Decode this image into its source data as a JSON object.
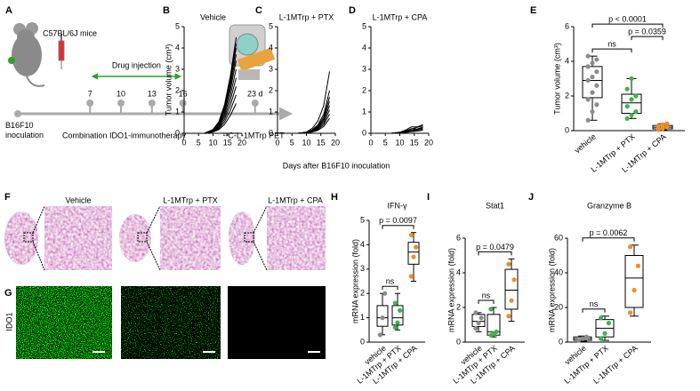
{
  "figure": {
    "panel_letters": [
      "A",
      "B",
      "C",
      "D",
      "E",
      "F",
      "G",
      "H",
      "I",
      "J"
    ],
    "schematic": {
      "mouse_label": "C57BL/6J mice",
      "injection_label": "Drug injection",
      "timeline": [
        7,
        10,
        13,
        16,
        {
          "value": 23,
          "label": "23 d"
        }
      ],
      "start_label": "B16F10 inoculation",
      "therapy_label": "Combination IDO1-immunotherapy",
      "pet_label": "¹¹C-L-1MTrp PET"
    },
    "shared_x_label": "Days after B16F10 inoculation",
    "histology": {
      "groups": [
        "Vehicle",
        "L-1MTrp + PTX",
        "L-1MTrp + CPA"
      ],
      "stain_label": "IDO1"
    }
  },
  "chart_data": [
    {
      "type": "line",
      "title": "Vehicle",
      "ylabel": "Tumor volume (cm³)",
      "color": "#000000",
      "x": [
        7,
        10,
        12,
        14,
        16,
        18
      ],
      "xlim": [
        0,
        20
      ],
      "xticks": [
        0,
        5,
        10,
        15,
        20
      ],
      "ylim": [
        0,
        5
      ],
      "yticks": [
        0,
        1,
        2,
        3,
        4,
        5
      ],
      "series": [
        {
          "values": [
            0,
            0.18,
            0.54,
            1.35,
            2.7,
            4.5
          ]
        },
        {
          "values": [
            0,
            0.17,
            0.5,
            1.26,
            2.52,
            4.2
          ]
        },
        {
          "values": [
            0,
            0.16,
            0.48,
            1.2,
            2.4,
            4.0
          ]
        },
        {
          "values": [
            0,
            0.15,
            0.44,
            1.11,
            2.22,
            3.7
          ]
        },
        {
          "values": [
            0,
            0.14,
            0.41,
            1.02,
            2.04,
            3.4
          ]
        },
        {
          "values": [
            0,
            0.12,
            0.36,
            0.9,
            1.8,
            3.0
          ]
        },
        {
          "values": [
            0,
            0.1,
            0.31,
            0.78,
            1.56,
            2.6
          ]
        },
        {
          "values": [
            0,
            0.09,
            0.26,
            0.66,
            1.32,
            2.2
          ]
        },
        {
          "values": [
            0,
            0.07,
            0.22,
            0.54,
            1.08,
            1.8
          ]
        },
        {
          "values": [
            0,
            0.06,
            0.17,
            0.42,
            0.84,
            1.4
          ]
        }
      ]
    },
    {
      "type": "line",
      "title": "L-1MTrp + PTX",
      "color": "#000000",
      "x": [
        7,
        10,
        12,
        14,
        16,
        18
      ],
      "xlim": [
        0,
        20
      ],
      "xticks": [
        0,
        5,
        10,
        15,
        20
      ],
      "ylim": [
        0,
        5
      ],
      "yticks": [
        0,
        1,
        2,
        3,
        4,
        5
      ],
      "series": [
        {
          "values": [
            0,
            0.06,
            0.23,
            0.58,
            1.31,
            2.9
          ]
        },
        {
          "values": [
            0,
            0.04,
            0.16,
            0.4,
            0.9,
            2.0
          ]
        },
        {
          "values": [
            0,
            0.03,
            0.14,
            0.34,
            0.77,
            1.7
          ]
        },
        {
          "values": [
            0,
            0.03,
            0.12,
            0.3,
            0.68,
            1.5
          ]
        },
        {
          "values": [
            0,
            0.03,
            0.1,
            0.26,
            0.59,
            1.3
          ]
        },
        {
          "values": [
            0,
            0.02,
            0.09,
            0.22,
            0.5,
            1.1
          ]
        },
        {
          "values": [
            0,
            0.02,
            0.07,
            0.18,
            0.41,
            0.9
          ]
        },
        {
          "values": [
            0,
            0.01,
            0.06,
            0.14,
            0.32,
            0.7
          ]
        }
      ]
    },
    {
      "type": "line",
      "title": "L-1MTrp + CPA",
      "color": "#000000",
      "x": [
        7,
        10,
        12,
        14,
        16,
        18
      ],
      "xlim": [
        0,
        20
      ],
      "xticks": [
        0,
        5,
        10,
        15,
        20
      ],
      "ylim": [
        0,
        5
      ],
      "yticks": [
        0,
        1,
        2,
        3,
        4,
        5
      ],
      "series": [
        {
          "values": [
            0,
            0.05,
            0.15,
            0.3,
            0.3,
            0.4
          ]
        },
        {
          "values": [
            0,
            0.04,
            0.12,
            0.2,
            0.28,
            0.35
          ]
        },
        {
          "values": [
            0,
            0.03,
            0.1,
            0.22,
            0.2,
            0.3
          ]
        },
        {
          "values": [
            0,
            0.03,
            0.08,
            0.15,
            0.18,
            0.25
          ]
        },
        {
          "values": [
            0,
            0.02,
            0.06,
            0.1,
            0.15,
            0.2
          ]
        },
        {
          "values": [
            0,
            0.01,
            0.04,
            0.08,
            0.1,
            0.15
          ]
        }
      ]
    },
    {
      "type": "box",
      "ylabel": "Tumor volume (cm³)",
      "categories": [
        "vehicle",
        "L-1MTrp + PTX",
        "L-1MTrp + CPA"
      ],
      "colors": [
        "#8c8c8c",
        "#3cb44b",
        "#f08c28"
      ],
      "ylim": [
        0,
        6
      ],
      "yticks": [
        0,
        2,
        4,
        6
      ],
      "boxes": [
        {
          "min": 0.6,
          "q1": 1.9,
          "median": 2.9,
          "q3": 3.7,
          "max": 4.3,
          "points": [
            0.6,
            1.1,
            1.5,
            1.8,
            2.2,
            2.6,
            2.9,
            3.1,
            3.4,
            3.7,
            3.9,
            4.1,
            4.3
          ]
        },
        {
          "min": 0.7,
          "q1": 1.0,
          "median": 1.6,
          "q3": 2.1,
          "max": 3.0,
          "points": [
            0.7,
            0.9,
            1.1,
            1.4,
            1.8,
            2.0,
            2.4,
            3.0
          ]
        },
        {
          "min": 0.05,
          "q1": 0.1,
          "median": 0.2,
          "q3": 0.3,
          "max": 0.4,
          "points": [
            0.05,
            0.12,
            0.2,
            0.28,
            0.35,
            0.4
          ]
        }
      ],
      "comparisons": [
        {
          "groups": [
            0,
            1
          ],
          "text": "ns"
        },
        {
          "groups": [
            1,
            2
          ],
          "text": "p = 0.0359"
        },
        {
          "groups": [
            0,
            2
          ],
          "text": "p < 0.0001"
        }
      ]
    },
    {
      "type": "box",
      "title": "IFN-γ",
      "ylabel": "mRNA expression (fold)",
      "categories": [
        "vehicle",
        "L-1MTrp + PTX",
        "L-1MTrp + CPA"
      ],
      "colors": [
        "#8c8c8c",
        "#3cb44b",
        "#f08c28"
      ],
      "ylim": [
        0,
        5
      ],
      "yticks": [
        0,
        1,
        2,
        3,
        4,
        5
      ],
      "boxes": [
        {
          "min": 0.3,
          "q1": 0.65,
          "median": 1.0,
          "q3": 1.5,
          "max": 2.0,
          "points": [
            0.3,
            1.0,
            2.0
          ]
        },
        {
          "min": 0.5,
          "q1": 0.7,
          "median": 1.0,
          "q3": 1.5,
          "max": 2.0,
          "points": [
            0.6,
            0.8,
            1.3,
            1.6
          ]
        },
        {
          "min": 2.5,
          "q1": 3.2,
          "median": 3.7,
          "q3": 4.1,
          "max": 4.5,
          "points": [
            2.7,
            3.5,
            3.9,
            4.4
          ]
        }
      ],
      "comparisons": [
        {
          "groups": [
            0,
            1
          ],
          "text": "ns"
        },
        {
          "groups": [
            0,
            2
          ],
          "text": "p = 0.0097"
        }
      ]
    },
    {
      "type": "box",
      "title": "Stat1",
      "ylabel": "mRNA expression (fold)",
      "categories": [
        "vehicle",
        "L-1MTrp + PTX",
        "L-1MTrp + CPA"
      ],
      "colors": [
        "#8c8c8c",
        "#3cb44b",
        "#f08c28"
      ],
      "ylim": [
        0,
        6
      ],
      "yticks": [
        0,
        2,
        4,
        6
      ],
      "boxes": [
        {
          "min": 0.6,
          "q1": 0.9,
          "median": 1.2,
          "q3": 1.6,
          "max": 1.7,
          "points": [
            0.8,
            1.1,
            1.4,
            1.7
          ]
        },
        {
          "min": 0.3,
          "q1": 0.4,
          "median": 0.6,
          "q3": 1.6,
          "max": 2.0,
          "points": [
            0.4,
            0.5,
            0.6,
            1.9
          ]
        },
        {
          "min": 1.2,
          "q1": 1.9,
          "median": 3.0,
          "q3": 4.2,
          "max": 4.8,
          "points": [
            1.5,
            2.4,
            3.6,
            4.5
          ]
        }
      ],
      "comparisons": [
        {
          "groups": [
            0,
            1
          ],
          "text": "ns"
        },
        {
          "groups": [
            0,
            2
          ],
          "text": "p = 0.0479"
        }
      ]
    },
    {
      "type": "box",
      "title": "Granzyme B",
      "ylabel": "mRNA expression (fold)",
      "categories": [
        "vehicle",
        "L-1MTrp + PTX",
        "L-1MTrp + CPA"
      ],
      "colors": [
        "#8c8c8c",
        "#3cb44b",
        "#f08c28"
      ],
      "ylim": [
        0,
        60
      ],
      "yticks": [
        0,
        20,
        40,
        60
      ],
      "boxes": [
        {
          "min": 0.5,
          "q1": 1,
          "median": 2,
          "q3": 3,
          "max": 3.5,
          "points": [
            1,
            2,
            3
          ]
        },
        {
          "min": 1,
          "q1": 3,
          "median": 8,
          "q3": 13,
          "max": 15,
          "points": [
            2,
            5,
            11,
            14
          ]
        },
        {
          "min": 15,
          "q1": 20,
          "median": 37,
          "q3": 50,
          "max": 56,
          "points": [
            17,
            30,
            44,
            55
          ]
        }
      ],
      "comparisons": [
        {
          "groups": [
            0,
            1
          ],
          "text": "ns"
        },
        {
          "groups": [
            0,
            2
          ],
          "text": "p = 0.0062"
        }
      ]
    }
  ]
}
